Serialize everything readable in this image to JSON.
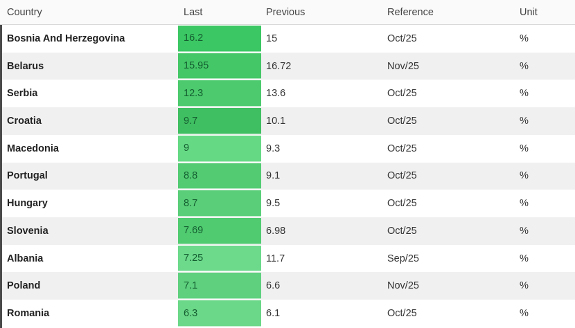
{
  "colors": {
    "green_cell_text": "#155e31",
    "left_edge_bar": "#4a4a4a",
    "row_stripe": "#f0f0f0",
    "header_background": "#fafafa"
  },
  "table": {
    "columns": [
      "Country",
      "Last",
      "Previous",
      "Reference",
      "Unit"
    ],
    "rows": [
      {
        "country": "Bosnia And Herzegovina",
        "last": "16.2",
        "last_color": "#3bc763",
        "previous": "15",
        "reference": "Oct/25",
        "unit": "%"
      },
      {
        "country": "Belarus",
        "last": "15.95",
        "last_color": "#44c767",
        "previous": "16.72",
        "reference": "Nov/25",
        "unit": "%"
      },
      {
        "country": "Serbia",
        "last": "12.3",
        "last_color": "#4cca6d",
        "previous": "13.6",
        "reference": "Oct/25",
        "unit": "%"
      },
      {
        "country": "Croatia",
        "last": "9.7",
        "last_color": "#3fbf61",
        "previous": "10.1",
        "reference": "Oct/25",
        "unit": "%"
      },
      {
        "country": "Macedonia",
        "last": "9",
        "last_color": "#66d985",
        "previous": "9.3",
        "reference": "Oct/25",
        "unit": "%"
      },
      {
        "country": "Portugal",
        "last": "8.8",
        "last_color": "#52cb72",
        "previous": "9.1",
        "reference": "Oct/25",
        "unit": "%"
      },
      {
        "country": "Hungary",
        "last": "8.7",
        "last_color": "#5ace79",
        "previous": "9.5",
        "reference": "Oct/25",
        "unit": "%"
      },
      {
        "country": "Slovenia",
        "last": "7.69",
        "last_color": "#50cb70",
        "previous": "6.98",
        "reference": "Oct/25",
        "unit": "%"
      },
      {
        "country": "Albania",
        "last": "7.25",
        "last_color": "#6cd98b",
        "previous": "11.7",
        "reference": "Sep/25",
        "unit": "%"
      },
      {
        "country": "Poland",
        "last": "7.1",
        "last_color": "#5ed07e",
        "previous": "6.6",
        "reference": "Nov/25",
        "unit": "%"
      },
      {
        "country": "Romania",
        "last": "6.3",
        "last_color": "#6bd788",
        "previous": "6.1",
        "reference": "Oct/25",
        "unit": "%"
      }
    ]
  }
}
